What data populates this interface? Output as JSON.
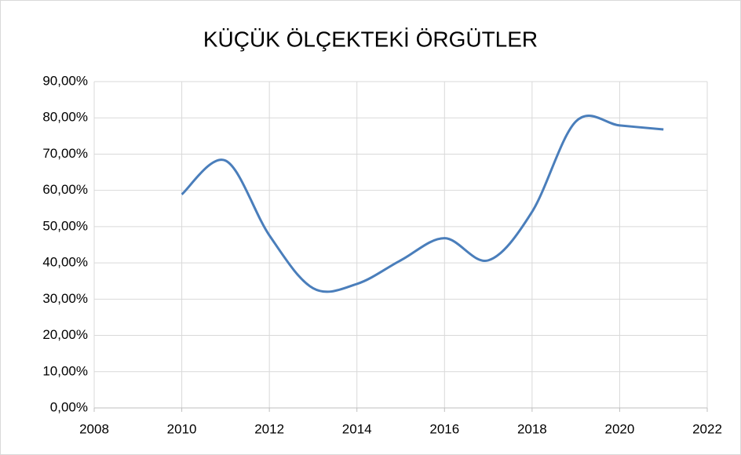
{
  "chart_data": {
    "type": "line",
    "title": "KÜÇÜK ÖLÇEKTEKİ ÖRGÜTLER",
    "x": [
      2010,
      2011,
      2012,
      2013,
      2014,
      2015,
      2016,
      2017,
      2018,
      2019,
      2020,
      2021
    ],
    "values": [
      58.9,
      68.2,
      47.6,
      33,
      34.2,
      40.7,
      46.8,
      40.7,
      54.1,
      79,
      77.9,
      76.8
    ],
    "color": "#4a7ebb",
    "smooth": true,
    "xlim": [
      2008,
      2022
    ],
    "xticks": [
      2008,
      2010,
      2012,
      2014,
      2016,
      2018,
      2020,
      2022
    ],
    "ylim": [
      0,
      90
    ],
    "yticks": [
      {
        "value": 0,
        "label": "0,00%"
      },
      {
        "value": 10,
        "label": "10,00%"
      },
      {
        "value": 20,
        "label": "20,00%"
      },
      {
        "value": 30,
        "label": "30,00%"
      },
      {
        "value": 40,
        "label": "40,00%"
      },
      {
        "value": 50,
        "label": "50,00%"
      },
      {
        "value": 60,
        "label": "60,00%"
      },
      {
        "value": 70,
        "label": "70,00%"
      },
      {
        "value": 80,
        "label": "80,00%"
      },
      {
        "value": 90,
        "label": "90,00%"
      }
    ],
    "grid": true
  }
}
